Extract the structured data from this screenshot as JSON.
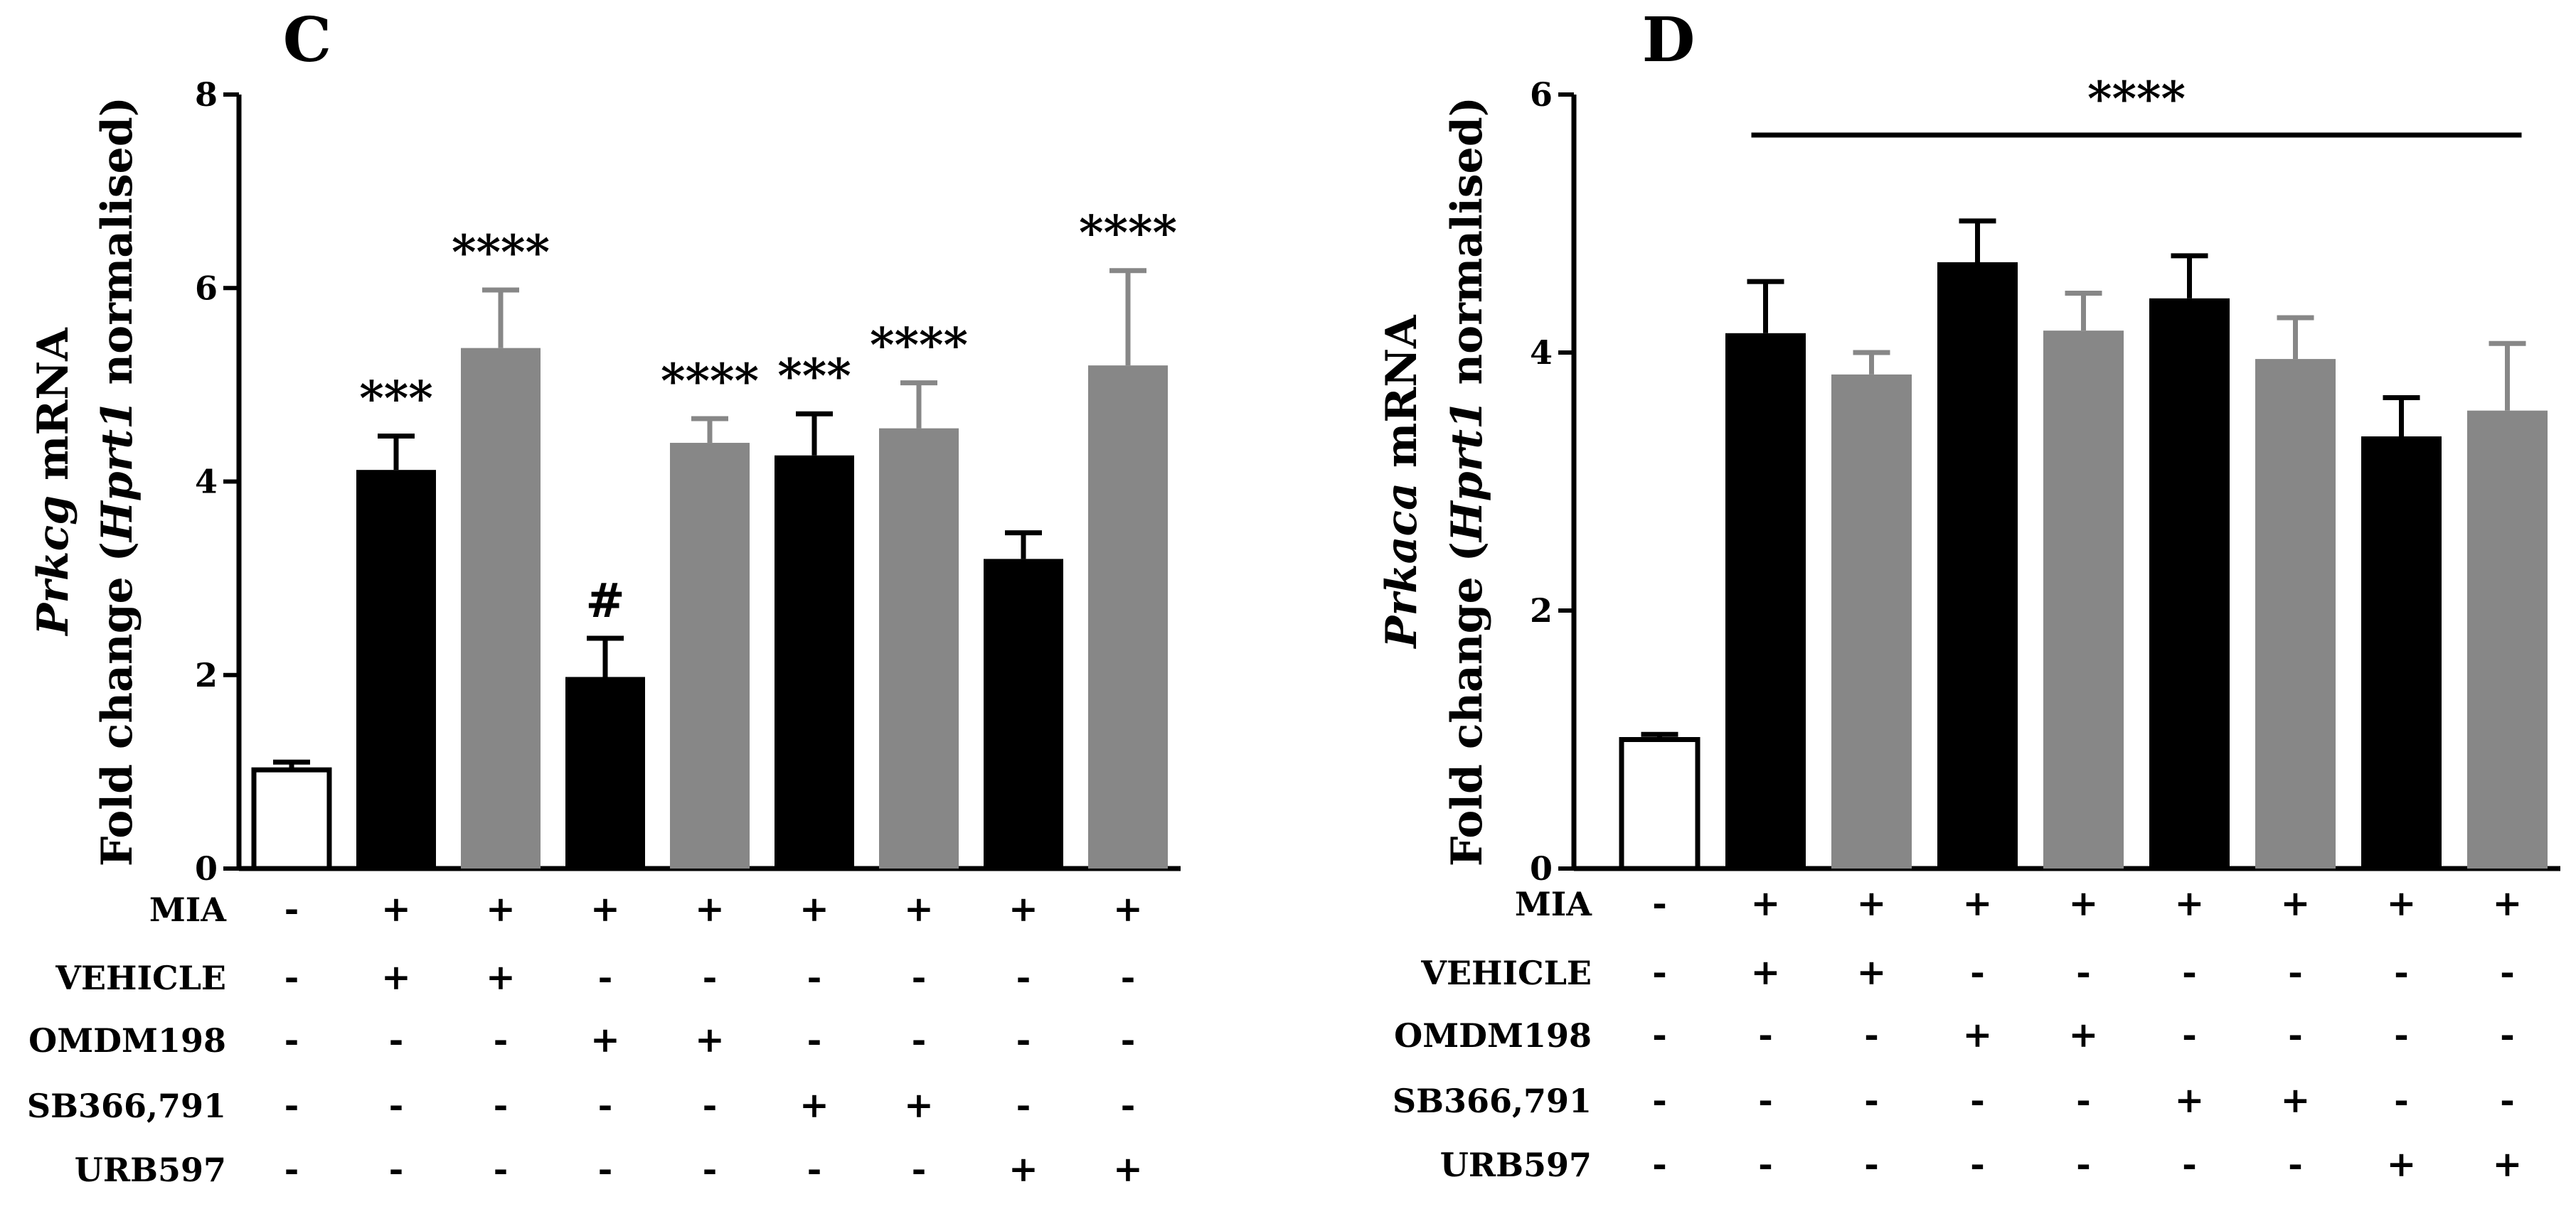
{
  "chart_data": [
    {
      "type": "bar",
      "panel_label": "C",
      "ylabel_parts": [
        {
          "text": "Fold change (",
          "italic": false
        },
        {
          "text": "Hprt1",
          "italic": true
        },
        {
          "text": " normalised)",
          "italic": false
        }
      ],
      "ylabel2_parts": [
        {
          "text": "Prkcg",
          "italic": true
        },
        {
          "text": " mRNA",
          "italic": false
        }
      ],
      "ylim": [
        0,
        8
      ],
      "yticks": [
        "0",
        "2",
        "4",
        "6",
        "8"
      ],
      "bars": [
        {
          "value": 1.02,
          "error": 0.08,
          "fill": "white",
          "label": ""
        },
        {
          "value": 4.12,
          "error": 0.35,
          "fill": "black",
          "label": "***"
        },
        {
          "value": 5.38,
          "error": 0.6,
          "fill": "gray",
          "label": "****"
        },
        {
          "value": 1.98,
          "error": 0.4,
          "fill": "black",
          "label": "#"
        },
        {
          "value": 4.4,
          "error": 0.25,
          "fill": "gray",
          "label": "****"
        },
        {
          "value": 4.27,
          "error": 0.43,
          "fill": "black",
          "label": "***"
        },
        {
          "value": 4.55,
          "error": 0.47,
          "fill": "gray",
          "label": "****"
        },
        {
          "value": 3.2,
          "error": 0.27,
          "fill": "black",
          "label": ""
        },
        {
          "value": 5.2,
          "error": 0.98,
          "fill": "gray",
          "label": "****"
        }
      ],
      "bracket": null,
      "table": [
        {
          "name": "MIA",
          "marks": [
            "-",
            "+",
            "+",
            "+",
            "+",
            "+",
            "+",
            "+",
            "+"
          ]
        },
        {
          "name": "VEHICLE",
          "marks": [
            "-",
            "+",
            "+",
            "-",
            "-",
            "-",
            "-",
            "-",
            "-"
          ]
        },
        {
          "name": "OMDM198",
          "marks": [
            "-",
            "-",
            "-",
            "+",
            "+",
            "-",
            "-",
            "-",
            "-"
          ]
        },
        {
          "name": "SB366,791",
          "marks": [
            "-",
            "-",
            "-",
            "-",
            "-",
            "+",
            "+",
            "-",
            "-"
          ]
        },
        {
          "name": "URB597",
          "marks": [
            "-",
            "-",
            "-",
            "-",
            "-",
            "-",
            "-",
            "+",
            "+"
          ]
        }
      ]
    },
    {
      "type": "bar",
      "panel_label": "D",
      "ylabel_parts": [
        {
          "text": "Fold change (",
          "italic": false
        },
        {
          "text": "Hprt1",
          "italic": true
        },
        {
          "text": " normalised)",
          "italic": false
        }
      ],
      "ylabel2_parts": [
        {
          "text": "Prkaca",
          "italic": true
        },
        {
          "text": " mRNA",
          "italic": false
        }
      ],
      "ylim": [
        0,
        6
      ],
      "yticks": [
        "0",
        "2",
        "4",
        "6"
      ],
      "bars": [
        {
          "value": 1.0,
          "error": 0.04,
          "fill": "white",
          "label": ""
        },
        {
          "value": 4.15,
          "error": 0.4,
          "fill": "black",
          "label": ""
        },
        {
          "value": 3.83,
          "error": 0.17,
          "fill": "gray",
          "label": ""
        },
        {
          "value": 4.7,
          "error": 0.32,
          "fill": "black",
          "label": ""
        },
        {
          "value": 4.17,
          "error": 0.29,
          "fill": "gray",
          "label": ""
        },
        {
          "value": 4.42,
          "error": 0.33,
          "fill": "black",
          "label": ""
        },
        {
          "value": 3.95,
          "error": 0.32,
          "fill": "gray",
          "label": ""
        },
        {
          "value": 3.35,
          "error": 0.3,
          "fill": "black",
          "label": ""
        },
        {
          "value": 3.55,
          "error": 0.52,
          "fill": "gray",
          "label": ""
        }
      ],
      "bracket": {
        "from_bar": 1,
        "to_bar": 8,
        "label": "****"
      },
      "table": [
        {
          "name": "MIA",
          "marks": [
            "-",
            "+",
            "+",
            "+",
            "+",
            "+",
            "+",
            "+",
            "+"
          ]
        },
        {
          "name": "VEHICLE",
          "marks": [
            "-",
            "+",
            "+",
            "-",
            "-",
            "-",
            "-",
            "-",
            "-"
          ]
        },
        {
          "name": "OMDM198",
          "marks": [
            "-",
            "-",
            "-",
            "+",
            "+",
            "-",
            "-",
            "-",
            "-"
          ]
        },
        {
          "name": "SB366,791",
          "marks": [
            "-",
            "-",
            "-",
            "-",
            "-",
            "+",
            "+",
            "-",
            "-"
          ]
        },
        {
          "name": "URB597",
          "marks": [
            "-",
            "-",
            "-",
            "-",
            "-",
            "-",
            "-",
            "+",
            "+"
          ]
        }
      ]
    }
  ],
  "colors": {
    "black": "#000000",
    "gray": "#878787",
    "white": "#ffffff"
  }
}
